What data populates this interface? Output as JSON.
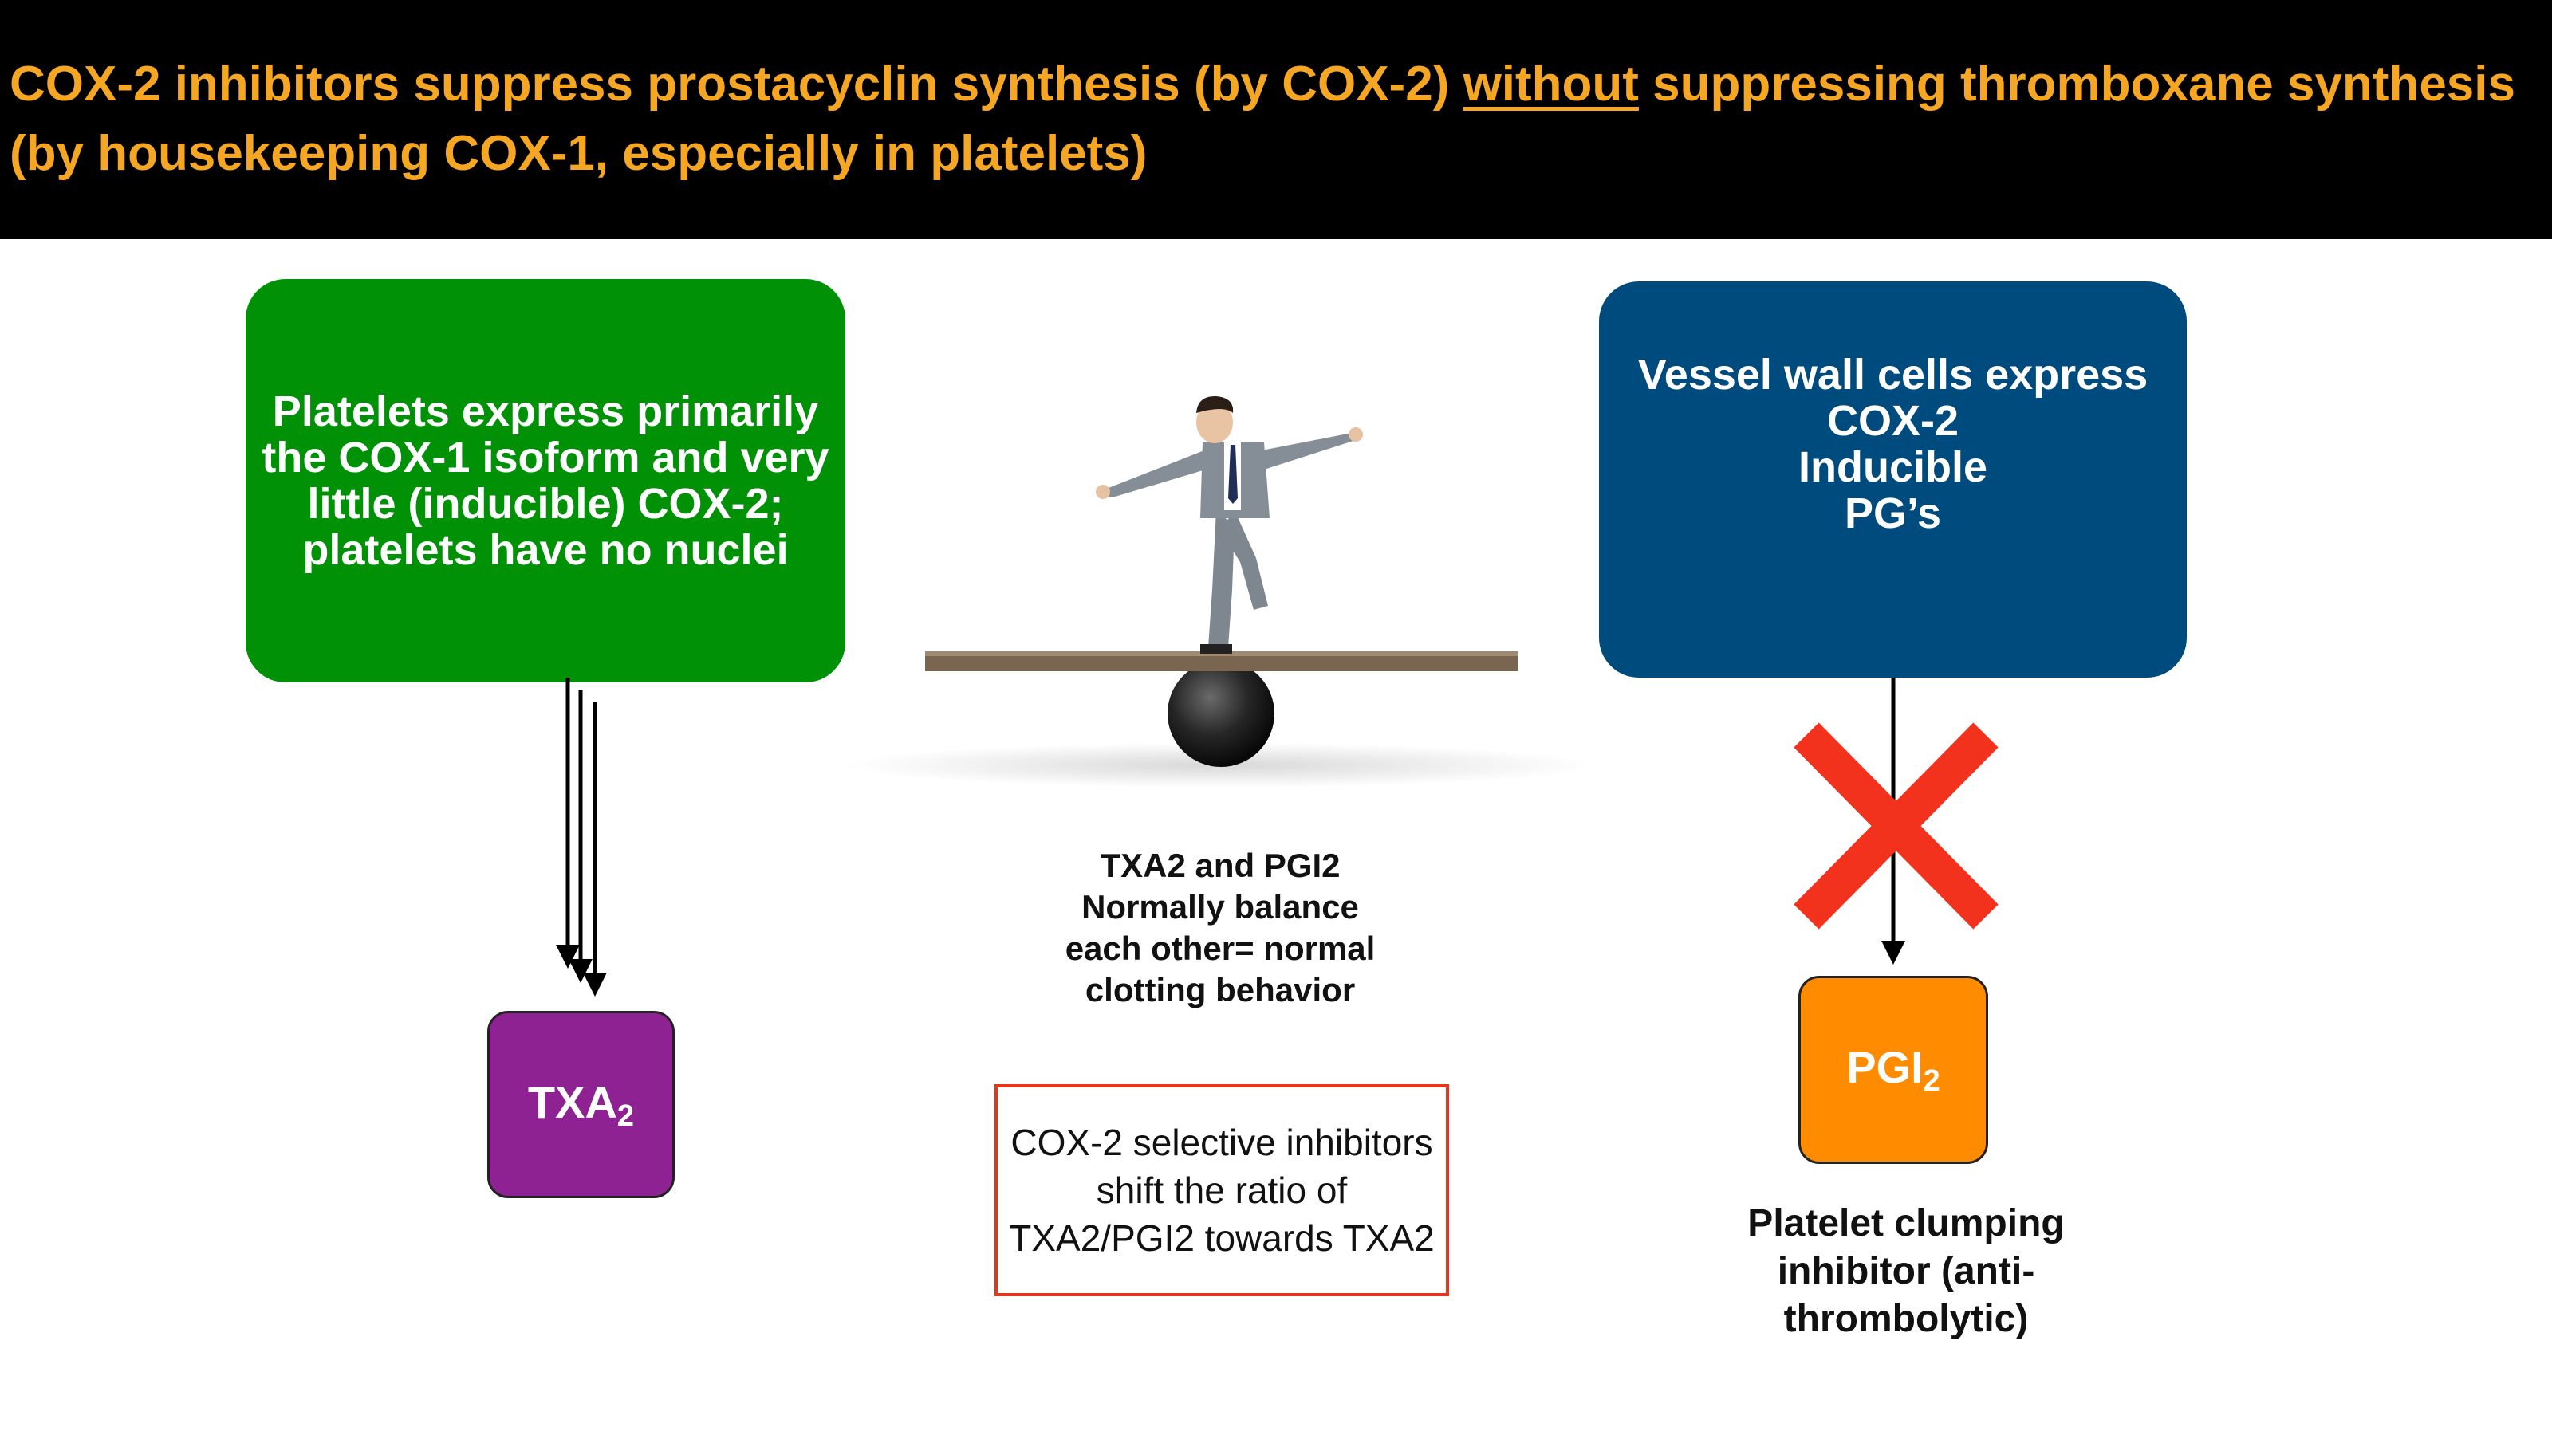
{
  "header": {
    "title_part1": "COX-2 inhibitors suppress prostacyclin synthesis (by COX-2) ",
    "title_emphasis": "without",
    "title_part2": " suppressing thromboxane synthesis (by housekeeping COX-1, especially in platelets)"
  },
  "left_box": {
    "text": "Platelets express primarily the COX-1 isoform and very little (inducible) COX-2; platelets have no nuclei",
    "color": "#009107"
  },
  "right_box": {
    "line1": "Vessel wall cells express",
    "line2": "COX-2",
    "line3": "Inducible",
    "line4": "PG’s",
    "color": "#004b7e"
  },
  "txa_box": {
    "base": "TXA",
    "subscript": "2",
    "color": "#8e2293"
  },
  "pgi_box": {
    "base": "PGI",
    "subscript": "2",
    "color": "#ff8c00"
  },
  "balance_caption": {
    "line1": "TXA2 and PGI2",
    "line2": "Normally balance",
    "line3": "each other= normal",
    "line4": "clotting behavior"
  },
  "ratio_note": {
    "text": "COX-2 selective inhibitors shift the ratio of TXA2/PGI2 towards TXA2",
    "border_color": "#e8341c"
  },
  "platelet_caption": {
    "line1": "Platelet clumping",
    "line2": "inhibitor (anti-",
    "line3": "thrombolytic)"
  },
  "icons": {
    "balance_illustration": "man-balancing-on-seesaw-icon",
    "block_mark": "red-x-icon"
  }
}
